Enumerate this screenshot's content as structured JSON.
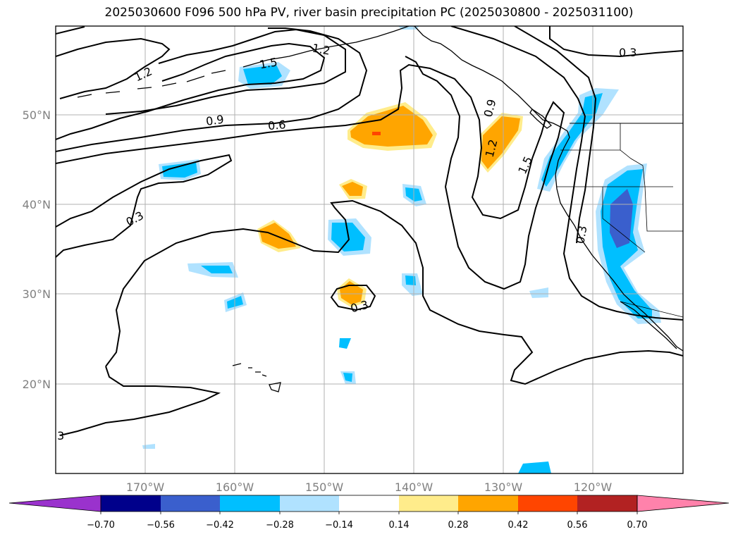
{
  "title": "2025030600 F096 500 hPa PV, river basin precipitation PC (2025030800 - 2025031100)",
  "map": {
    "lat_labels": [
      "50°N",
      "40°N",
      "30°N",
      "20°N"
    ],
    "lon_labels": [
      "170°W",
      "160°W",
      "150°W",
      "140°W",
      "130°W",
      "120°W"
    ],
    "grid": true,
    "contour_labels": [
      "1.2",
      "1.5",
      "1.2",
      "0.9",
      "0.6",
      "0.3",
      "0.3",
      "0.9",
      "1.2",
      "1.5",
      "0.3",
      "0.3",
      "3"
    ],
    "colors": {
      "purple": "#9a32cd",
      "navy": "#00008b",
      "royal_blue": "#3a5fcd",
      "deep_sky_blue": "#00bfff",
      "light_sky_blue": "#b0e2ff",
      "white": "#ffffff",
      "light_yellow": "#ffec8b",
      "orange": "#ffa500",
      "orange_red": "#ff4500",
      "firebrick": "#b22222",
      "pink": "#ff82ab"
    }
  },
  "colorbar": {
    "ticks": [
      "−0.70",
      "−0.56",
      "−0.42",
      "−0.28",
      "−0.14",
      "0.14",
      "0.28",
      "0.42",
      "0.56",
      "0.70"
    ],
    "colors": [
      "#9a32cd",
      "#00008b",
      "#3a5fcd",
      "#00bfff",
      "#b0e2ff",
      "#ffffff",
      "#ffec8b",
      "#ffa500",
      "#ff4500",
      "#b22222",
      "#ff82ab"
    ]
  }
}
